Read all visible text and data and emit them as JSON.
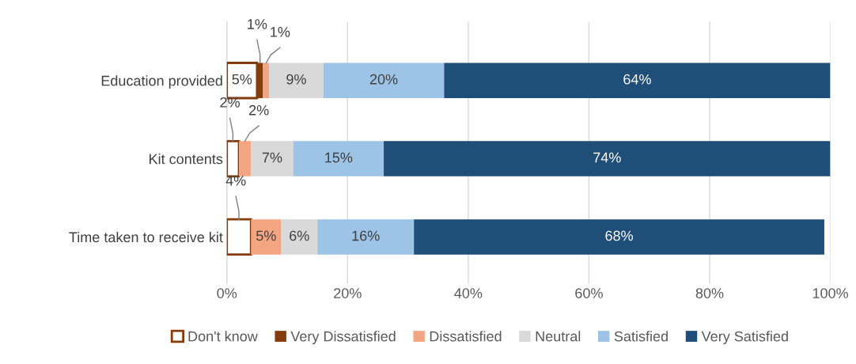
{
  "chart_data": {
    "type": "bar",
    "orientation": "horizontal",
    "stacked": true,
    "categories": [
      "Education provided",
      "Kit contents",
      "Time taken to receive kit"
    ],
    "series": [
      {
        "name": "Don't know",
        "color": "#ffffff",
        "values": [
          5,
          2,
          4
        ],
        "value_labels": [
          "5%",
          "2%",
          "4%"
        ]
      },
      {
        "name": "Very Dissatisfied",
        "color": "#843c0c",
        "values": [
          1,
          0,
          0
        ],
        "value_labels": [
          "1%",
          null,
          null
        ]
      },
      {
        "name": "Dissatisfied",
        "color": "#f4a582",
        "values": [
          1,
          2,
          5
        ],
        "value_labels": [
          "1%",
          "2%",
          "5%"
        ]
      },
      {
        "name": "Neutral",
        "color": "#d9d9d9",
        "values": [
          9,
          7,
          6
        ],
        "value_labels": [
          "9%",
          "7%",
          "6%"
        ]
      },
      {
        "name": "Satisfied",
        "color": "#9dc3e6",
        "values": [
          20,
          15,
          16
        ],
        "value_labels": [
          "20%",
          "15%",
          "16%"
        ]
      },
      {
        "name": "Very Satisfied",
        "color": "#1f4e79",
        "values": [
          64,
          74,
          68
        ],
        "value_labels": [
          "64%",
          "74%",
          "68%"
        ]
      }
    ],
    "xlim": [
      0,
      100
    ],
    "xticks": [
      {
        "value": 0,
        "label": "0%"
      },
      {
        "value": 20,
        "label": "20%"
      },
      {
        "value": 40,
        "label": "40%"
      },
      {
        "value": 60,
        "label": "60%"
      },
      {
        "value": 80,
        "label": "80%"
      },
      {
        "value": 100,
        "label": "100%"
      }
    ],
    "grid": "x",
    "legend": "bottom"
  }
}
